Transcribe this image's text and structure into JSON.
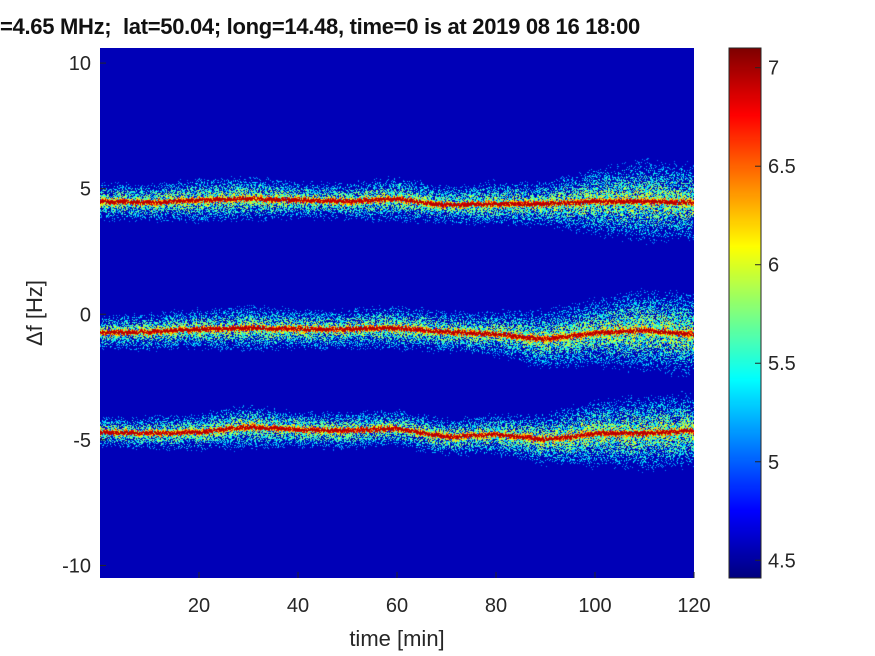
{
  "chart_data": {
    "type": "heatmap",
    "title": "=4.65 MHz;  lat=50.04; long=14.48, time=0 is at 2019 08 16 18:00",
    "xlabel": "time [min]",
    "ylabel": "Δf [Hz]",
    "xlim": [
      0,
      120
    ],
    "ylim": [
      -10.5,
      10.6
    ],
    "xticks": [
      20,
      40,
      60,
      80,
      100,
      120
    ],
    "xtick_labels": [
      "20",
      "40",
      "60",
      "80",
      "100",
      "120"
    ],
    "yticks": [
      10,
      5,
      0,
      -5,
      -10
    ],
    "ytick_labels": [
      "10",
      "5",
      "0",
      "-5",
      "-10"
    ],
    "colormap": "jet",
    "clim": [
      4.41,
      7.1
    ],
    "colorbar_ticks": [
      7,
      6.5,
      6,
      5.5,
      5,
      4.5
    ],
    "colorbar_tick_labels": [
      "7",
      "6.5",
      "6",
      "5.5",
      "5",
      "4.5"
    ],
    "background_value": 4.41,
    "peak_value": 7.0,
    "band_time": [
      0,
      10,
      20,
      30,
      40,
      50,
      60,
      70,
      80,
      90,
      100,
      110,
      120
    ],
    "bands": [
      {
        "name": "upper",
        "center_hz": [
          4.5,
          4.45,
          4.55,
          4.6,
          4.55,
          4.5,
          4.6,
          4.35,
          4.4,
          4.4,
          4.5,
          4.5,
          4.45
        ],
        "spread_hz": [
          0.5,
          0.5,
          0.6,
          0.6,
          0.5,
          0.5,
          0.6,
          0.5,
          0.6,
          0.6,
          0.9,
          1.1,
          1.0
        ]
      },
      {
        "name": "middle",
        "center_hz": [
          -0.75,
          -0.7,
          -0.6,
          -0.55,
          -0.6,
          -0.6,
          -0.55,
          -0.7,
          -0.8,
          -1.0,
          -0.75,
          -0.65,
          -0.8
        ],
        "spread_hz": [
          0.45,
          0.5,
          0.55,
          0.6,
          0.55,
          0.55,
          0.6,
          0.55,
          0.6,
          0.8,
          0.9,
          1.1,
          1.1
        ]
      },
      {
        "name": "lower",
        "center_hz": [
          -4.7,
          -4.75,
          -4.7,
          -4.5,
          -4.6,
          -4.65,
          -4.55,
          -4.9,
          -4.8,
          -5.0,
          -4.75,
          -4.75,
          -4.65
        ],
        "spread_hz": [
          0.4,
          0.45,
          0.5,
          0.6,
          0.5,
          0.5,
          0.5,
          0.5,
          0.55,
          0.7,
          0.9,
          1.0,
          1.0
        ]
      }
    ]
  }
}
